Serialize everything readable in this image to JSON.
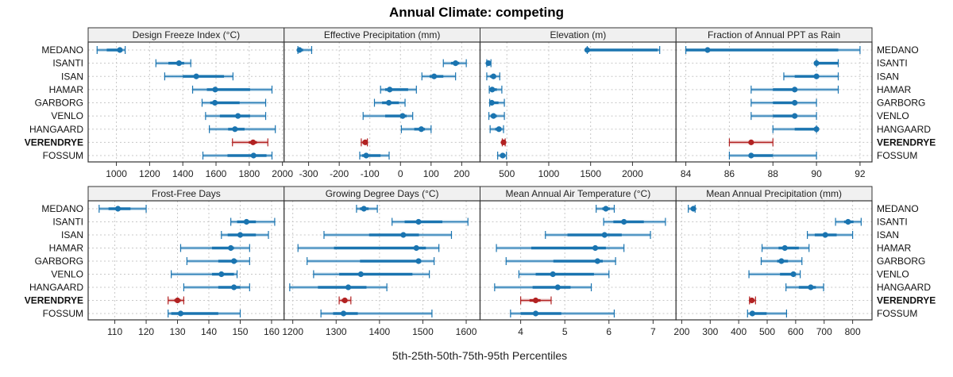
{
  "chart_data": {
    "type": "dotplot-percentiles",
    "title": "Annual Climate: competing",
    "xlabel": "5th-25th-50th-75th-95th Percentiles",
    "ylabel": "",
    "grid": true,
    "highlight_label": "VERENDRYE",
    "colors": {
      "default": "#1a74b0",
      "default_light": "#7fb2d6",
      "highlight": "#b22222",
      "highlight_light": "#d88a8a",
      "strip_bg": "#f0f0f0",
      "grid": "#c8c8c8",
      "frame": "#333333"
    },
    "categories": [
      "MEDANO",
      "ISANTI",
      "ISAN",
      "HAMAR",
      "GARBORG",
      "VENLO",
      "HANGAARD",
      "VERENDRYE",
      "FOSSUM"
    ],
    "percentile_keys": [
      "p5",
      "p25",
      "p50",
      "p75",
      "p95"
    ],
    "panels": [
      {
        "title": "Design Freeze Index (°C)",
        "xlim": [
          830,
          2010
        ],
        "ticks": [
          1000,
          1200,
          1400,
          1600,
          1800,
          2000
        ],
        "tick_labels": [
          "1000",
          "1200",
          "1400",
          "1600",
          "1800",
          "2000"
        ],
        "values": [
          [
            884,
            942,
            1021,
            1036,
            1053
          ],
          [
            1238,
            1313,
            1377,
            1408,
            1448
          ],
          [
            1291,
            1400,
            1481,
            1648,
            1702
          ],
          [
            1459,
            1545,
            1595,
            1805,
            1937
          ],
          [
            1516,
            1565,
            1593,
            1742,
            1899
          ],
          [
            1537,
            1623,
            1732,
            1805,
            1899
          ],
          [
            1560,
            1673,
            1714,
            1772,
            1957
          ],
          [
            1699,
            1797,
            1823,
            1846,
            1912
          ],
          [
            1521,
            1669,
            1826,
            1904,
            1937
          ]
        ]
      },
      {
        "title": "Effective Precipitation (mm)",
        "xlim": [
          -380,
          260
        ],
        "ticks": [
          -400,
          -300,
          -200,
          -100,
          0,
          100,
          200
        ],
        "tick_labels": [
          "-400",
          "-300",
          "-200",
          "-100",
          "0",
          "100",
          "200"
        ],
        "values": [
          [
            -335,
            -333,
            -330,
            -318,
            -290
          ],
          [
            140,
            165,
            180,
            192,
            215
          ],
          [
            70,
            95,
            110,
            140,
            180
          ],
          [
            -65,
            -50,
            -35,
            25,
            52
          ],
          [
            -85,
            -60,
            -38,
            -5,
            15
          ],
          [
            -122,
            -50,
            7,
            20,
            40
          ],
          [
            3,
            45,
            68,
            80,
            100
          ],
          [
            -128,
            -122,
            -115,
            -112,
            -108
          ],
          [
            -133,
            -125,
            -112,
            -65,
            -37
          ]
        ]
      },
      {
        "title": "Elevation (m)",
        "xlim": [
          180,
          2520
        ],
        "ticks": [
          500,
          1000,
          1500,
          2000
        ],
        "tick_labels": [
          "500",
          "1000",
          "1500",
          "2000"
        ],
        "values": [
          [
            1460,
            1460,
            1460,
            2300,
            2325
          ],
          [
            260,
            270,
            280,
            295,
            310
          ],
          [
            260,
            300,
            340,
            370,
            415
          ],
          [
            290,
            305,
            325,
            380,
            440
          ],
          [
            295,
            305,
            320,
            400,
            470
          ],
          [
            285,
            310,
            340,
            380,
            470
          ],
          [
            300,
            360,
            405,
            430,
            460
          ],
          [
            445,
            452,
            460,
            470,
            480
          ],
          [
            390,
            420,
            450,
            470,
            495
          ]
        ]
      },
      {
        "title": "Fraction of Annual PPT as Rain",
        "xlim": [
          83.55,
          92.55
        ],
        "ticks": [
          84,
          86,
          88,
          90,
          92
        ],
        "tick_labels": [
          "84",
          "86",
          "88",
          "90",
          "92"
        ],
        "values": [
          [
            84,
            84,
            85,
            91,
            92
          ],
          [
            90,
            90,
            90,
            91,
            91
          ],
          [
            88.5,
            89,
            90,
            90,
            91
          ],
          [
            87,
            88,
            89,
            89,
            91
          ],
          [
            87,
            88,
            89,
            89,
            90
          ],
          [
            87,
            88,
            89,
            89,
            90
          ],
          [
            88,
            89,
            90,
            90,
            90
          ],
          [
            86,
            87,
            87,
            87,
            88
          ],
          [
            86,
            87,
            87,
            88,
            90
          ]
        ]
      },
      {
        "title": "Frost-Free Days",
        "xlim": [
          101.5,
          164
        ],
        "ticks": [
          110,
          120,
          130,
          140,
          150,
          160
        ],
        "tick_labels": [
          "110",
          "120",
          "130",
          "140",
          "150",
          "160"
        ],
        "values": [
          [
            105,
            108,
            111,
            115,
            120
          ],
          [
            147,
            149,
            152,
            155,
            161
          ],
          [
            144,
            146,
            150,
            155,
            159
          ],
          [
            131,
            141,
            147,
            148,
            153
          ],
          [
            133,
            143,
            148,
            149,
            153
          ],
          [
            128,
            141,
            144,
            148,
            149
          ],
          [
            132,
            143,
            148,
            150,
            153
          ],
          [
            127,
            129,
            130,
            131,
            132
          ],
          [
            127,
            128,
            131,
            143,
            150
          ]
        ]
      },
      {
        "title": "Growing Degree Days (°C)",
        "xlim": [
          1180,
          1632
        ],
        "ticks": [
          1200,
          1300,
          1400,
          1500,
          1600
        ],
        "tick_labels": [
          "1200",
          "1300",
          "1400",
          "1500",
          "1600"
        ],
        "values": [
          [
            1347,
            1355,
            1364,
            1375,
            1395
          ],
          [
            1429,
            1458,
            1490,
            1545,
            1604
          ],
          [
            1272,
            1376,
            1455,
            1491,
            1566
          ],
          [
            1212,
            1295,
            1485,
            1507,
            1537
          ],
          [
            1233,
            1355,
            1490,
            1496,
            1526
          ],
          [
            1248,
            1307,
            1357,
            1476,
            1515
          ],
          [
            1193,
            1258,
            1328,
            1370,
            1417
          ],
          [
            1307,
            1313,
            1320,
            1325,
            1334
          ],
          [
            1265,
            1293,
            1317,
            1350,
            1521
          ]
        ]
      },
      {
        "title": "Mean Annual Air Temperature (°C)",
        "xlim": [
          3.08,
          7.52
        ],
        "ticks": [
          4,
          5,
          6,
          7
        ],
        "tick_labels": [
          "4",
          "5",
          "6",
          "7"
        ],
        "values": [
          [
            5.71,
            5.85,
            5.93,
            6.02,
            6.12
          ],
          [
            5.88,
            6.1,
            6.34,
            6.79,
            7.28
          ],
          [
            4.56,
            5.06,
            5.9,
            6.29,
            6.94
          ],
          [
            3.45,
            4.24,
            5.69,
            5.93,
            6.34
          ],
          [
            3.67,
            4.74,
            5.74,
            5.86,
            6.15
          ],
          [
            3.96,
            4.34,
            4.73,
            5.66,
            6.0
          ],
          [
            3.41,
            4.27,
            4.84,
            5.13,
            5.6
          ],
          [
            4.0,
            4.2,
            4.34,
            4.45,
            4.69
          ],
          [
            3.77,
            4.0,
            4.34,
            4.92,
            6.12
          ]
        ]
      },
      {
        "title": "Mean Annual Precipitation (mm)",
        "xlim": [
          180,
          868
        ],
        "ticks": [
          200,
          300,
          400,
          500,
          600,
          700,
          800
        ],
        "tick_labels": [
          "200",
          "300",
          "400",
          "500",
          "600",
          "700",
          "800"
        ],
        "values": [
          [
            223,
            232,
            241,
            244,
            247
          ],
          [
            740,
            770,
            784,
            803,
            830
          ],
          [
            641,
            667,
            704,
            744,
            800
          ],
          [
            482,
            540,
            562,
            611,
            647
          ],
          [
            479,
            535,
            550,
            573,
            622
          ],
          [
            436,
            545,
            592,
            601,
            616
          ],
          [
            566,
            611,
            653,
            671,
            698
          ],
          [
            438,
            442,
            446,
            450,
            459
          ],
          [
            431,
            440,
            448,
            498,
            568
          ]
        ]
      }
    ]
  }
}
